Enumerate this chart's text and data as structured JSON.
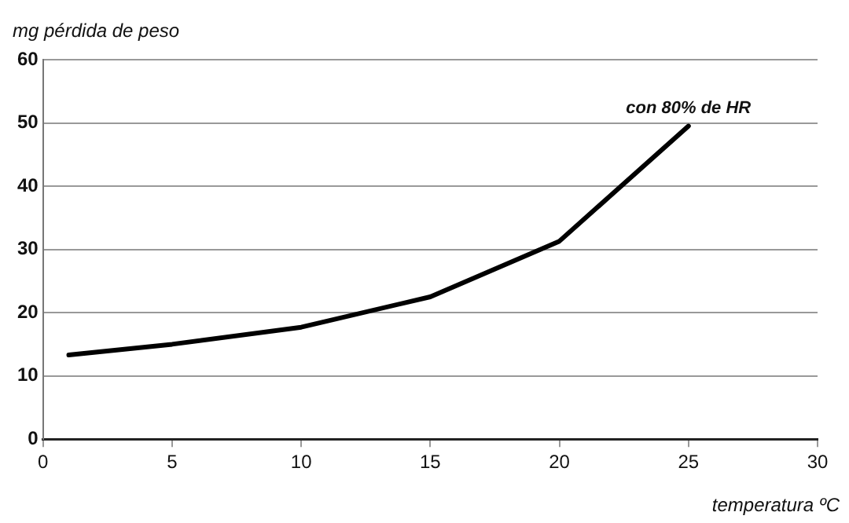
{
  "chart_data": {
    "type": "line",
    "xlabel": "temperatura ºC",
    "ylabel": "mg pérdida de peso",
    "x": [
      1,
      5,
      10,
      15,
      20,
      25
    ],
    "series": [
      {
        "color": "#000000",
        "values": [
          13.3,
          15,
          17.7,
          22.5,
          31.3,
          49.5
        ]
      }
    ],
    "xlim": [
      0,
      30
    ],
    "xticks": [
      0,
      5,
      10,
      15,
      20,
      25,
      30
    ],
    "ylim": [
      0,
      60
    ],
    "yticks": [
      0,
      10,
      20,
      30,
      40,
      50,
      60
    ],
    "annotations": [
      {
        "text": "con 80% de HR",
        "x": 25,
        "y": 50
      }
    ],
    "grid": "y",
    "legend": false,
    "marker": "none",
    "line_style": "solid"
  }
}
